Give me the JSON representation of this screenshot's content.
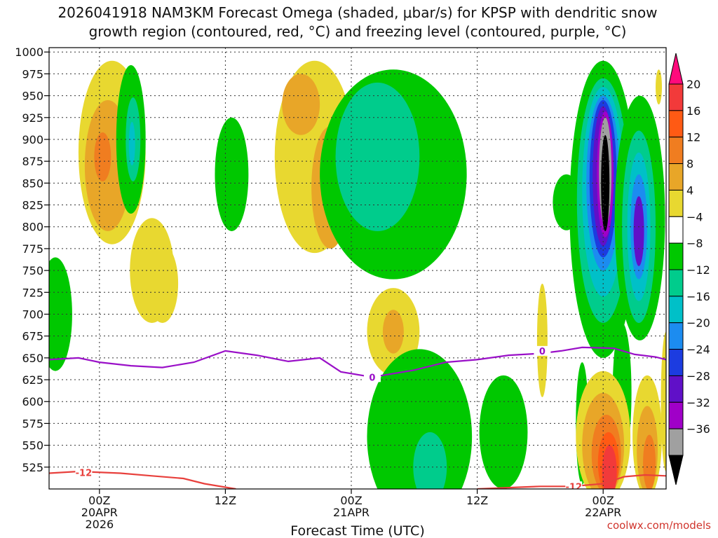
{
  "chart_data": {
    "type": "heatmap",
    "title_line1": "2026041918 NAM3KM Forecast Omega (shaded, μbar/s) for KPSP with dendritic snow",
    "title_line2": "growth region (contoured, red, °C) and freezing level (contoured, purple, °C)",
    "xlabel": "Forecast Time (UTC)",
    "credit": "coolwx.com/models",
    "x_range_hours": [
      -4.8,
      54.0
    ],
    "y_range_hpa": [
      1005,
      500
    ],
    "y_ticks": [
      525,
      550,
      575,
      600,
      625,
      650,
      675,
      700,
      725,
      750,
      775,
      800,
      825,
      850,
      875,
      900,
      925,
      950,
      975,
      1000
    ],
    "y_tick_labels": [
      "525",
      "550",
      "575",
      "600",
      "625",
      "650",
      "675",
      "700",
      "725",
      "750",
      "775",
      "800",
      "825",
      "850",
      "875",
      "900",
      "925",
      "950",
      "975",
      "1000"
    ],
    "x_ticks": [
      {
        "hour": 0,
        "label": "00Z",
        "sub1": "20APR",
        "sub2": "2026"
      },
      {
        "hour": 12,
        "label": "12Z",
        "sub1": "",
        "sub2": ""
      },
      {
        "hour": 24,
        "label": "00Z",
        "sub1": "21APR",
        "sub2": ""
      },
      {
        "hour": 36,
        "label": "12Z",
        "sub1": "",
        "sub2": ""
      },
      {
        "hour": 48,
        "label": "00Z",
        "sub1": "22APR",
        "sub2": ""
      }
    ],
    "colorbar": {
      "levels": [
        20,
        16,
        12,
        8,
        4,
        -4,
        -8,
        -12,
        -16,
        -20,
        -24,
        -28,
        -32,
        -36
      ],
      "labels": [
        "20",
        "16",
        "12",
        "8",
        "4",
        "−4",
        "−8",
        "−12",
        "−16",
        "−20",
        "−24",
        "−28",
        "−32",
        "−36"
      ],
      "colors": [
        "#ff0a7c",
        "#f23a3a",
        "#ff5a14",
        "#f07d20",
        "#e8a628",
        "#e8d830",
        "#ffffff",
        "#00c800",
        "#00cc8c",
        "#00c0c8",
        "#1c8cf0",
        "#1c3ce0",
        "#6010c8",
        "#a000c8",
        "#a0a0a0",
        "#000000"
      ]
    },
    "contour_labels": {
      "dendritic_m12": "-12",
      "freezing_0": "0"
    },
    "freezing_level": [
      {
        "h": -4.8,
        "p": 648
      },
      {
        "h": -2,
        "p": 650
      },
      {
        "h": 0,
        "p": 645
      },
      {
        "h": 3,
        "p": 641
      },
      {
        "h": 6,
        "p": 639
      },
      {
        "h": 9,
        "p": 645
      },
      {
        "h": 12,
        "p": 658
      },
      {
        "h": 15,
        "p": 653
      },
      {
        "h": 18,
        "p": 646
      },
      {
        "h": 21,
        "p": 650
      },
      {
        "h": 23,
        "p": 634
      },
      {
        "h": 26,
        "p": 628
      },
      {
        "h": 30,
        "p": 636
      },
      {
        "h": 33,
        "p": 645
      },
      {
        "h": 36,
        "p": 648
      },
      {
        "h": 39,
        "p": 653
      },
      {
        "h": 42,
        "p": 655
      },
      {
        "h": 44,
        "p": 658
      },
      {
        "h": 46,
        "p": 662
      },
      {
        "h": 49,
        "p": 661
      },
      {
        "h": 51,
        "p": 654
      },
      {
        "h": 53,
        "p": 651
      },
      {
        "h": 54,
        "p": 648
      }
    ],
    "dendritic_m12": [
      {
        "h": -4.8,
        "p": 518
      },
      {
        "h": -2,
        "p": 520
      },
      {
        "h": 2,
        "p": 518
      },
      {
        "h": 5,
        "p": 515
      },
      {
        "h": 8,
        "p": 512
      },
      {
        "h": 10,
        "p": 506
      },
      {
        "h": 12,
        "p": 502
      },
      {
        "h": 13,
        "p": 500
      }
    ],
    "dendritic_m12_b": [
      {
        "h": 36,
        "p": 500
      },
      {
        "h": 40,
        "p": 502
      },
      {
        "h": 42,
        "p": 503
      },
      {
        "h": 45,
        "p": 503
      },
      {
        "h": 48,
        "p": 506
      },
      {
        "h": 50,
        "p": 514
      },
      {
        "h": 52,
        "p": 516
      },
      {
        "h": 54,
        "p": 515
      }
    ],
    "omega_regions": [
      {
        "level": "4",
        "cx": 1.2,
        "cy": 885,
        "rx": 3.2,
        "ry": 105
      },
      {
        "level": "8",
        "cx": 0.8,
        "cy": 870,
        "rx": 2.2,
        "ry": 75
      },
      {
        "level": "12",
        "cx": 0.3,
        "cy": 880,
        "rx": 0.8,
        "ry": 28
      },
      {
        "level": "4",
        "cx": 5,
        "cy": 750,
        "rx": 2.1,
        "ry": 60
      },
      {
        "level": "4",
        "cx": 6,
        "cy": 735,
        "rx": 1.5,
        "ry": 45
      },
      {
        "level": "-4",
        "cx": 3,
        "cy": 900,
        "rx": 1.4,
        "ry": 85
      },
      {
        "level": "-8",
        "cx": 3.2,
        "cy": 900,
        "rx": 0.7,
        "ry": 48
      },
      {
        "level": "-12",
        "cx": 3.1,
        "cy": 895,
        "rx": 0.3,
        "ry": 25
      },
      {
        "level": "-4",
        "cx": -4.2,
        "cy": 700,
        "rx": 1.6,
        "ry": 65
      },
      {
        "level": "-4",
        "cx": 12.6,
        "cy": 860,
        "rx": 1.6,
        "ry": 65
      },
      {
        "level": "4",
        "cx": 20.5,
        "cy": 880,
        "rx": 3.8,
        "ry": 110
      },
      {
        "level": "8",
        "cx": 22,
        "cy": 845,
        "rx": 1.8,
        "ry": 70
      },
      {
        "level": "8",
        "cx": 19.2,
        "cy": 940,
        "rx": 1.8,
        "ry": 35
      },
      {
        "level": "12",
        "cx": 22.3,
        "cy": 820,
        "rx": 0.4,
        "ry": 25
      },
      {
        "level": "-4",
        "cx": 28,
        "cy": 860,
        "rx": 7,
        "ry": 120
      },
      {
        "level": "-8",
        "cx": 26.5,
        "cy": 880,
        "rx": 4,
        "ry": 85
      },
      {
        "level": "4",
        "cx": 28,
        "cy": 680,
        "rx": 2.5,
        "ry": 50
      },
      {
        "level": "8",
        "cx": 28,
        "cy": 680,
        "rx": 1,
        "ry": 25
      },
      {
        "level": "-4",
        "cx": 30.5,
        "cy": 560,
        "rx": 5,
        "ry": 100
      },
      {
        "level": "-8",
        "cx": 31.5,
        "cy": 525,
        "rx": 1.6,
        "ry": 40
      },
      {
        "level": "-4",
        "cx": 38.5,
        "cy": 565,
        "rx": 2.3,
        "ry": 65
      },
      {
        "level": "-4",
        "cx": 46,
        "cy": 575,
        "rx": 0.6,
        "ry": 70
      },
      {
        "level": "4",
        "cx": 42.2,
        "cy": 670,
        "rx": 0.5,
        "ry": 65
      },
      {
        "level": "-4",
        "cx": 44.5,
        "cy": 828,
        "rx": 1.3,
        "ry": 32
      },
      {
        "level": "4",
        "cx": 46.8,
        "cy": 925,
        "rx": 0.6,
        "ry": 22
      },
      {
        "level": "-4",
        "cx": 48,
        "cy": 820,
        "rx": 3.2,
        "ry": 170
      },
      {
        "level": "-8",
        "cx": 48,
        "cy": 830,
        "rx": 2.5,
        "ry": 140
      },
      {
        "level": "-12",
        "cx": 48,
        "cy": 840,
        "rx": 2,
        "ry": 120
      },
      {
        "level": "-16",
        "cx": 48,
        "cy": 850,
        "rx": 1.6,
        "ry": 100
      },
      {
        "level": "-20",
        "cx": 48,
        "cy": 855,
        "rx": 1.3,
        "ry": 90
      },
      {
        "level": "-24",
        "cx": 48,
        "cy": 858,
        "rx": 1.0,
        "ry": 80
      },
      {
        "level": "-28",
        "cx": 48.2,
        "cy": 860,
        "rx": 0.8,
        "ry": 72
      },
      {
        "level": "-32",
        "cx": 48.2,
        "cy": 863,
        "rx": 0.6,
        "ry": 62
      },
      {
        "level": "-36",
        "cx": 48.2,
        "cy": 850,
        "rx": 0.4,
        "ry": 55
      },
      {
        "level": "-4",
        "cx": 51.5,
        "cy": 810,
        "rx": 2.4,
        "ry": 140
      },
      {
        "level": "-8",
        "cx": 51.4,
        "cy": 800,
        "rx": 1.6,
        "ry": 110
      },
      {
        "level": "-12",
        "cx": 51.4,
        "cy": 800,
        "rx": 1.1,
        "ry": 85
      },
      {
        "level": "-16",
        "cx": 51.4,
        "cy": 800,
        "rx": 0.8,
        "ry": 60
      },
      {
        "level": "-24",
        "cx": 51.4,
        "cy": 795,
        "rx": 0.5,
        "ry": 40
      },
      {
        "level": "-4",
        "cx": 49.8,
        "cy": 610,
        "rx": 0.9,
        "ry": 80
      },
      {
        "level": "4",
        "cx": 48,
        "cy": 560,
        "rx": 2.6,
        "ry": 75
      },
      {
        "level": "8",
        "cx": 48,
        "cy": 550,
        "rx": 2.0,
        "ry": 60
      },
      {
        "level": "12",
        "cx": 48.3,
        "cy": 540,
        "rx": 1.4,
        "ry": 45
      },
      {
        "level": "16",
        "cx": 48.5,
        "cy": 530,
        "rx": 1.0,
        "ry": 35
      },
      {
        "level": "20",
        "cx": 48.6,
        "cy": 520,
        "rx": 0.7,
        "ry": 30
      },
      {
        "level": "4",
        "cx": 52.2,
        "cy": 560,
        "rx": 1.4,
        "ry": 70
      },
      {
        "level": "8",
        "cx": 52.2,
        "cy": 545,
        "rx": 1.0,
        "ry": 50
      },
      {
        "level": "12",
        "cx": 52.4,
        "cy": 530,
        "rx": 0.6,
        "ry": 32
      },
      {
        "level": "4",
        "cx": 54,
        "cy": 600,
        "rx": 0.5,
        "ry": 80
      },
      {
        "level": "4",
        "cx": 53.3,
        "cy": 960,
        "rx": 0.3,
        "ry": 20
      }
    ],
    "terrain_color": "#a0522d"
  }
}
